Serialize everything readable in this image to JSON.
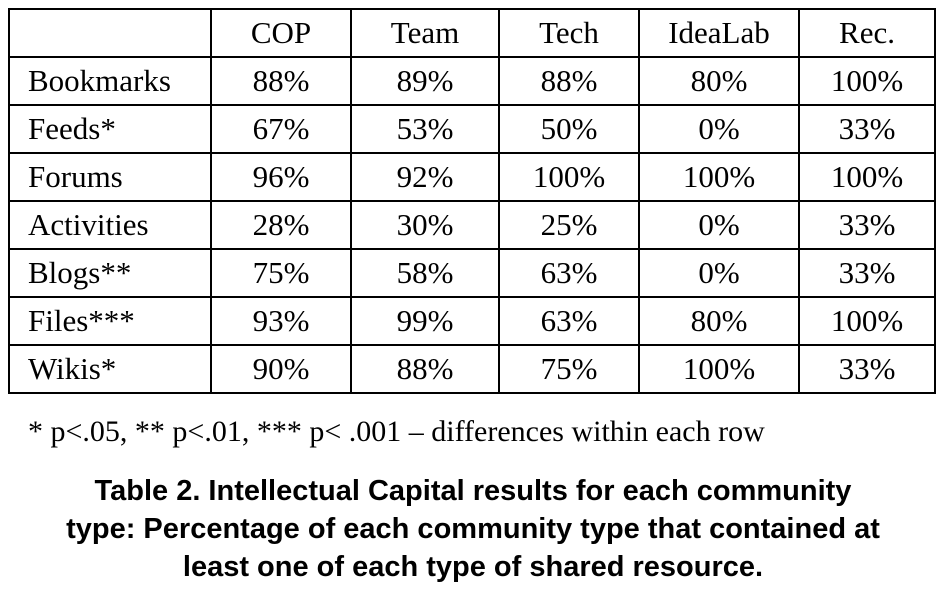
{
  "table": {
    "corner": "",
    "columns": [
      "COP",
      "Team",
      "Tech",
      "IdeaLab",
      "Rec."
    ],
    "rows": [
      {
        "label": "Bookmarks",
        "values": [
          "88%",
          "89%",
          "88%",
          "80%",
          "100%"
        ]
      },
      {
        "label": "Feeds*",
        "values": [
          "67%",
          "53%",
          "50%",
          "0%",
          "33%"
        ]
      },
      {
        "label": "Forums",
        "values": [
          "96%",
          "92%",
          "100%",
          "100%",
          "100%"
        ]
      },
      {
        "label": "Activities",
        "values": [
          "28%",
          "30%",
          "25%",
          "0%",
          "33%"
        ]
      },
      {
        "label": "Blogs**",
        "values": [
          "75%",
          "58%",
          "63%",
          "0%",
          "33%"
        ]
      },
      {
        "label": "Files***",
        "values": [
          "93%",
          "99%",
          "63%",
          "80%",
          "100%"
        ]
      },
      {
        "label": "Wikis*",
        "values": [
          "90%",
          "88%",
          "75%",
          "100%",
          "33%"
        ]
      }
    ]
  },
  "footnote": "* p<.05, ** p<.01, *** p< .001 – differences within each row",
  "caption": {
    "lines": [
      "Table 2. Intellectual Capital results for each community",
      "type: Percentage of each community type that contained at",
      "least one of each type of shared resource."
    ]
  }
}
